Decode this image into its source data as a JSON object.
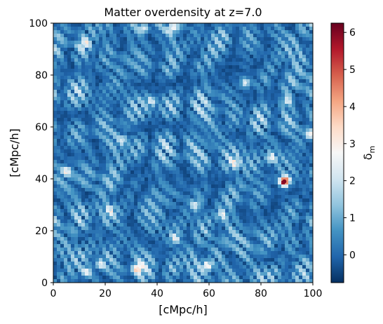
{
  "chart_data": {
    "type": "heatmap",
    "title": "Matter overdensity at z=7.0",
    "xlabel": "[cMpc/h]",
    "ylabel": "[cMpc/h]",
    "xlim": [
      0,
      100
    ],
    "ylim": [
      0,
      100
    ],
    "x_ticks": [
      0,
      20,
      40,
      60,
      80,
      100
    ],
    "y_ticks": [
      0,
      20,
      40,
      60,
      80,
      100
    ],
    "colorbar": {
      "label": "δ_m",
      "colormap": "RdBu_r",
      "range": [
        -0.75,
        6.25
      ],
      "ticks": [
        0,
        1,
        2,
        3,
        4,
        5,
        6
      ],
      "colormap_stops": [
        "#053061",
        "#2166ac",
        "#4393c3",
        "#92c5de",
        "#d1e5f0",
        "#f7f7f7",
        "#fddbc7",
        "#f4a582",
        "#d6604d",
        "#b2182b",
        "#67001f"
      ]
    },
    "field_note": "dense web of filaments; background mostly between -0.5 and 0.5",
    "hotspots": [
      {
        "x": 89,
        "y": 39,
        "value": 6.0
      },
      {
        "x": 32.5,
        "y": 5.5,
        "value": 3.2
      },
      {
        "x": 59.5,
        "y": 6.5,
        "value": 2.8
      },
      {
        "x": 13,
        "y": 4,
        "value": 2.4
      },
      {
        "x": 46,
        "y": 98,
        "value": 2.6
      },
      {
        "x": 35,
        "y": 98,
        "value": 2.3
      },
      {
        "x": 74,
        "y": 77,
        "value": 2.4
      },
      {
        "x": 99,
        "y": 57,
        "value": 2.6
      },
      {
        "x": 5,
        "y": 43,
        "value": 2.2
      },
      {
        "x": 70,
        "y": 46,
        "value": 2.2
      },
      {
        "x": 84,
        "y": 48,
        "value": 2.3
      },
      {
        "x": 12,
        "y": 92,
        "value": 2.1
      },
      {
        "x": 47,
        "y": 17,
        "value": 2.3
      },
      {
        "x": 18,
        "y": 7,
        "value": 2.0
      },
      {
        "x": 65,
        "y": 26,
        "value": 2.0
      },
      {
        "x": 22,
        "y": 28,
        "value": 1.9
      },
      {
        "x": 55,
        "y": 30,
        "value": 1.9
      },
      {
        "x": 38,
        "y": 70,
        "value": 1.9
      },
      {
        "x": 90,
        "y": 70,
        "value": 2.0
      },
      {
        "x": 27,
        "y": 55,
        "value": 1.8
      }
    ]
  }
}
